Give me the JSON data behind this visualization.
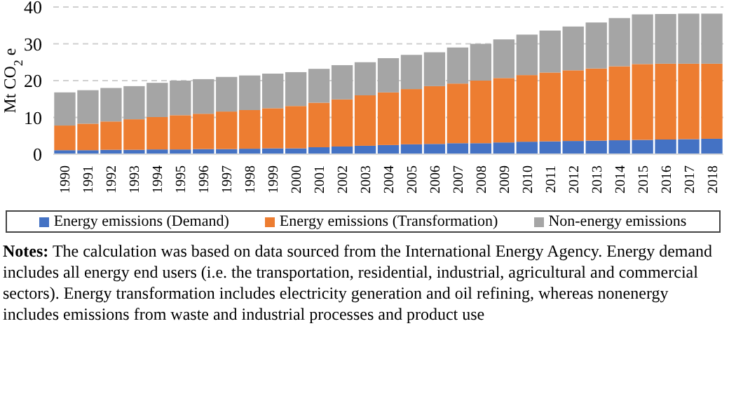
{
  "chart_data": {
    "type": "bar",
    "stacked": true,
    "ylabel": "Mt CO$_{2}$ e",
    "categories": [
      "1990",
      "1991",
      "1992",
      "1993",
      "1994",
      "1995",
      "1996",
      "1997",
      "1998",
      "1999",
      "2000",
      "2001",
      "2002",
      "2003",
      "2004",
      "2005",
      "2006",
      "2007",
      "2008",
      "2009",
      "2010",
      "2011",
      "2012",
      "2013",
      "2014",
      "2015",
      "2016",
      "2017",
      "2018"
    ],
    "series": [
      {
        "name": "Energy emissions (Demand)",
        "color": "#4472c4",
        "values": [
          1.1,
          1.1,
          1.2,
          1.2,
          1.3,
          1.3,
          1.4,
          1.4,
          1.5,
          1.6,
          1.6,
          1.9,
          2.1,
          2.3,
          2.5,
          2.7,
          2.8,
          3.0,
          3.0,
          3.2,
          3.4,
          3.5,
          3.6,
          3.7,
          3.8,
          3.9,
          4.0,
          4.1,
          4.2
        ]
      },
      {
        "name": "Energy emissions (Transformation)",
        "color": "#ed7d31",
        "values": [
          6.7,
          7.2,
          7.7,
          8.3,
          8.8,
          9.3,
          9.6,
          10.2,
          10.5,
          10.9,
          11.5,
          12.1,
          12.8,
          13.7,
          14.3,
          15.0,
          15.7,
          16.2,
          17.0,
          17.5,
          18.1,
          18.7,
          19.2,
          19.6,
          20.1,
          20.6,
          20.6,
          20.5,
          20.4
        ]
      },
      {
        "name": "Non-energy emissions",
        "color": "#a5a5a5",
        "values": [
          9.0,
          9.1,
          9.1,
          9.0,
          9.3,
          9.4,
          9.4,
          9.4,
          9.4,
          9.4,
          9.2,
          9.2,
          9.3,
          9.0,
          9.3,
          9.3,
          9.2,
          9.8,
          10.0,
          10.5,
          11.0,
          11.4,
          11.9,
          12.5,
          13.1,
          13.5,
          13.5,
          13.6,
          13.6
        ]
      }
    ],
    "ylim": [
      0,
      40
    ],
    "yticks": [
      0,
      10,
      20,
      30,
      40
    ],
    "grid": "y",
    "legend": "bottom",
    "annotations": [
      "Notes: The calculation was based on data sourced from the International Energy Agency. Energy demand includes all energy end users (i.e. the transportation, residential, industrial, agricultural and commercial sectors). Energy transformation includes electricity generation and oil refining, whereas nonenergy includes emissions from waste and industrial processes and product use"
    ]
  }
}
